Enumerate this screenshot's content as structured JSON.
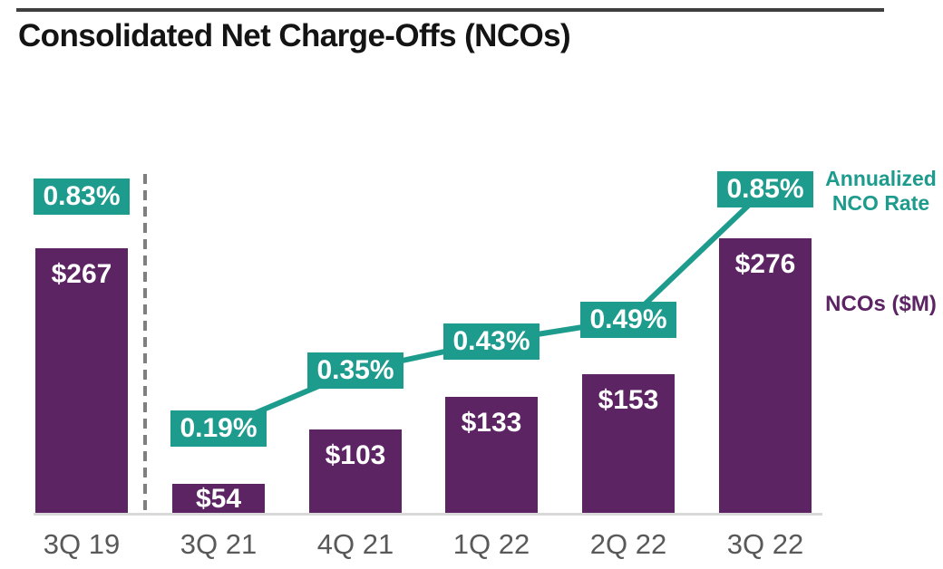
{
  "title": "Consolidated Net Charge-Offs (NCOs)",
  "legend": {
    "rate_line1": "Annualized",
    "rate_line2": "NCO Rate",
    "ncos": "NCOs ($M)"
  },
  "colors": {
    "bar_purple": "#5c2463",
    "rate_teal": "#1d9b8d",
    "axis_gray": "#d9d9d9",
    "separator_gray": "#7f7f7f",
    "xlabel_gray": "#595959",
    "title_black": "#141414",
    "top_rule_dark": "#3f3f3f",
    "label_white": "#ffffff"
  },
  "chart_data": {
    "type": "bar",
    "title": "Consolidated Net Charge-Offs (NCOs)",
    "categories": [
      "3Q 19",
      "3Q 21",
      "4Q 21",
      "1Q 22",
      "2Q 22",
      "3Q 22"
    ],
    "series": [
      {
        "name": "NCOs ($M)",
        "type": "bar",
        "values": [
          267,
          54,
          103,
          133,
          153,
          276
        ],
        "labels": [
          "$267",
          "$54",
          "$103",
          "$133",
          "$153",
          "$276"
        ]
      },
      {
        "name": "Annualized NCO Rate",
        "type": "line",
        "values": [
          0.83,
          0.19,
          0.35,
          0.43,
          0.49,
          0.85
        ],
        "labels": [
          "0.83%",
          "0.19%",
          "0.35%",
          "0.43%",
          "0.49%",
          "0.85%"
        ],
        "line_connected_indices": [
          1,
          2,
          3,
          4,
          5
        ],
        "standalone_indices": [
          0
        ]
      }
    ],
    "xlabel": "",
    "ylabel": "NCOs ($M)",
    "y2label": "Annualized NCO Rate",
    "grid": false,
    "y_axis_ticks_visible": false,
    "value_labels_on_bars": true,
    "separator_after_category": "3Q 19",
    "legend_position": "right"
  }
}
